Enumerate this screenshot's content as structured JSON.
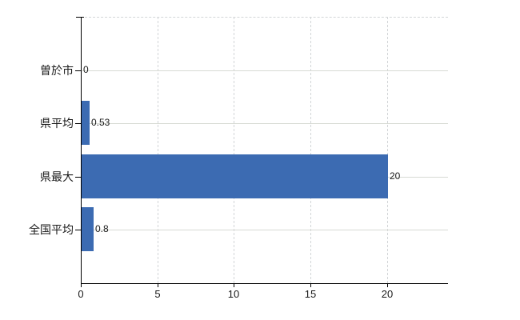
{
  "chart_data": {
    "type": "bar",
    "orientation": "horizontal",
    "title": "",
    "xlabel": "",
    "ylabel": "",
    "categories": [
      "曽於市",
      "県平均",
      "県最大",
      "全国平均"
    ],
    "values": [
      0,
      0.53,
      20,
      0.8
    ],
    "value_labels": [
      "0",
      "0.53",
      "20",
      "0.8"
    ],
    "xlim": [
      0,
      24
    ],
    "xticks": [
      0,
      5,
      10,
      15,
      20
    ],
    "xtick_labels": [
      "0",
      "5",
      "10",
      "15",
      "20"
    ],
    "grid": true,
    "legend": false,
    "colors": {
      "bar": "#3c6bb2",
      "axis": "#000000",
      "text": "#1a1a1a",
      "grid_solid": "#d7dad3",
      "grid_dashed": "#d2d5d7"
    }
  }
}
